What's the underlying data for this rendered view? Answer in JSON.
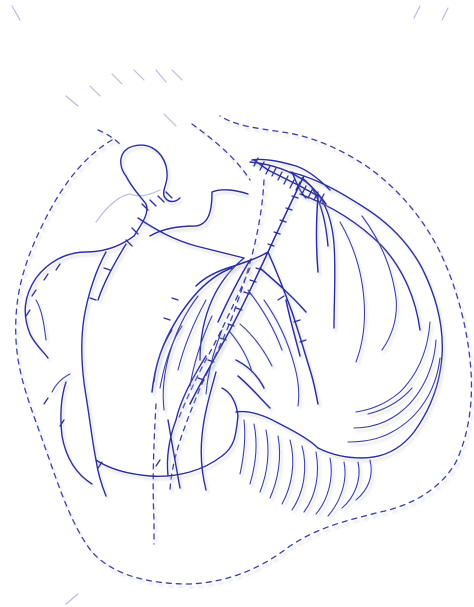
{
  "drawing": {
    "colors": {
      "ink": "#2b2f9e",
      "ink_light": "#6a6fc2",
      "faint": "#b9bce0",
      "shadow": "#c9cad6",
      "background": "#ffffff"
    }
  }
}
